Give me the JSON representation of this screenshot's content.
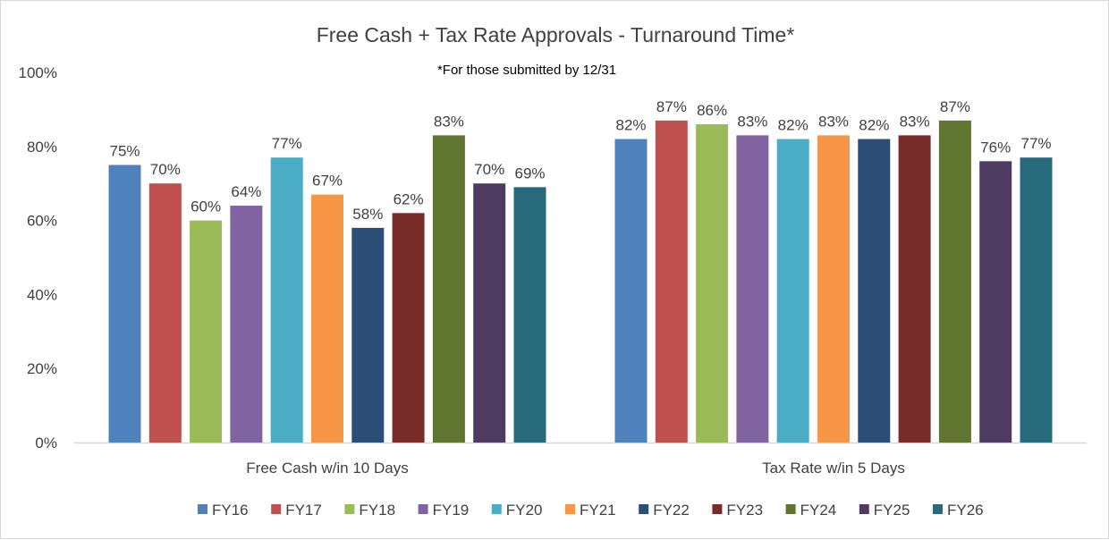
{
  "chart_data": {
    "type": "bar",
    "title": "Free Cash + Tax Rate Approvals - Turnaround Time*",
    "subtitle": "*For those submitted by 12/31",
    "xlabel": "",
    "ylabel": "",
    "ylim": [
      0,
      100
    ],
    "yticks": [
      "0%",
      "20%",
      "40%",
      "60%",
      "80%",
      "100%"
    ],
    "grid": false,
    "legend": "bottom",
    "categories": [
      "Free Cash w/in 10 Days",
      "Tax Rate w/in 5 Days"
    ],
    "series": [
      {
        "name": "FY16",
        "color": "#4f81bd",
        "values": [
          75,
          82
        ],
        "labels": [
          "75%",
          "82%"
        ]
      },
      {
        "name": "FY17",
        "color": "#c0504d",
        "values": [
          70,
          87
        ],
        "labels": [
          "70%",
          "87%"
        ]
      },
      {
        "name": "FY18",
        "color": "#9bbb59",
        "values": [
          60,
          86
        ],
        "labels": [
          "60%",
          "86%"
        ]
      },
      {
        "name": "FY19",
        "color": "#8064a2",
        "values": [
          64,
          83
        ],
        "labels": [
          "64%",
          "83%"
        ]
      },
      {
        "name": "FY20",
        "color": "#4bacc6",
        "values": [
          77,
          82
        ],
        "labels": [
          "77%",
          "82%"
        ]
      },
      {
        "name": "FY21",
        "color": "#f79646",
        "values": [
          67,
          83
        ],
        "labels": [
          "67%",
          "83%"
        ]
      },
      {
        "name": "FY22",
        "color": "#2c4d75",
        "values": [
          58,
          82
        ],
        "labels": [
          "58%",
          "82%"
        ]
      },
      {
        "name": "FY23",
        "color": "#772c2a",
        "values": [
          62,
          83
        ],
        "labels": [
          "62%",
          "83%"
        ]
      },
      {
        "name": "FY24",
        "color": "#5f7530",
        "values": [
          83,
          87
        ],
        "labels": [
          "83%",
          "87%"
        ]
      },
      {
        "name": "FY25",
        "color": "#4d3b62",
        "values": [
          70,
          76
        ],
        "labels": [
          "70%",
          "76%"
        ]
      },
      {
        "name": "FY26",
        "color": "#276a7c",
        "values": [
          69,
          77
        ],
        "labels": [
          "69%",
          "77%"
        ]
      }
    ]
  }
}
